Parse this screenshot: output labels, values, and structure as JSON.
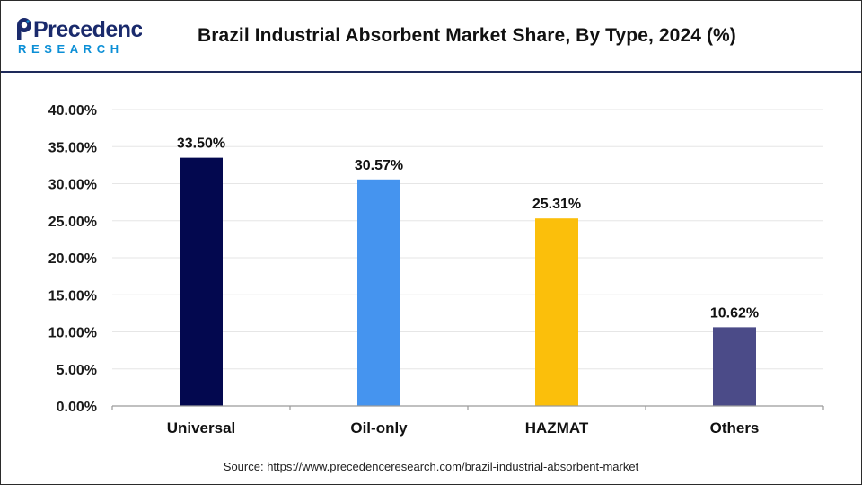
{
  "brand": {
    "name_line1": "Precedence",
    "name_line2": "RESEARCH",
    "primary_color": "#1a2a6c",
    "accent_color": "#0c8fd6"
  },
  "header": {
    "title": "Brazil Industrial Absorbent Market Share, By Type, 2024 (%)"
  },
  "chart_data": {
    "type": "bar",
    "title": "Brazil Industrial Absorbent Market Share, By Type, 2024 (%)",
    "categories": [
      "Universal",
      "Oil-only",
      "HAZMAT",
      "Others"
    ],
    "values": [
      33.5,
      30.57,
      25.31,
      10.62
    ],
    "value_labels": [
      "33.50%",
      "30.57%",
      "25.31%",
      "10.62%"
    ],
    "colors": [
      "#03084f",
      "#4594ef",
      "#fbbf0b",
      "#4b4b88"
    ],
    "ylim": [
      0,
      40
    ],
    "yticks": [
      0,
      5,
      10,
      15,
      20,
      25,
      30,
      35,
      40
    ],
    "ytick_labels": [
      "0.00%",
      "5.00%",
      "10.00%",
      "15.00%",
      "20.00%",
      "25.00%",
      "30.00%",
      "35.00%",
      "40.00%"
    ],
    "xlabel": "",
    "ylabel": "",
    "grid": true,
    "legend": "none"
  },
  "footer": {
    "source": "Source: https://www.precedenceresearch.com/brazil-industrial-absorbent-market"
  }
}
